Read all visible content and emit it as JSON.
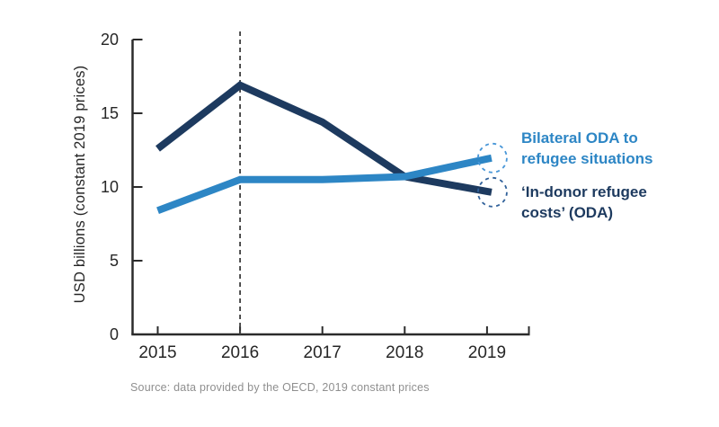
{
  "chart_data": {
    "type": "line",
    "title": "",
    "xlabel": "",
    "ylabel": "USD billions (constant 2019 prices)",
    "categories": [
      "2015",
      "2016",
      "2017",
      "2018",
      "2019"
    ],
    "yticks": [
      0,
      5,
      10,
      15,
      20
    ],
    "ylim": [
      0,
      20
    ],
    "grid": false,
    "legend_position": "right-of-line-endpoints",
    "series": [
      {
        "name": "‘In-donor refugee costs’ (ODA)",
        "color": "#1d3a5f",
        "circle_color": "#30619a",
        "values": [
          12.6,
          16.9,
          14.4,
          10.7,
          9.7
        ]
      },
      {
        "name": "Bilateral ODA to refugee situations",
        "color": "#2d86c5",
        "circle_color": "#4796d8",
        "values": [
          8.4,
          10.5,
          10.5,
          10.7,
          11.9
        ]
      }
    ],
    "annotations": {
      "dashed_vline_at": "2016",
      "endpoint_markers": "dashed circles around 2019 line ends"
    }
  },
  "source_note": "Source: data provided by the OECD, 2019 constant prices",
  "colors": {
    "background": "#ffffff",
    "axis": "#2b2b2b",
    "tick_label": "#262626",
    "dashed_vline": "#3f3f3f",
    "source_text": "#8f8f8f"
  }
}
